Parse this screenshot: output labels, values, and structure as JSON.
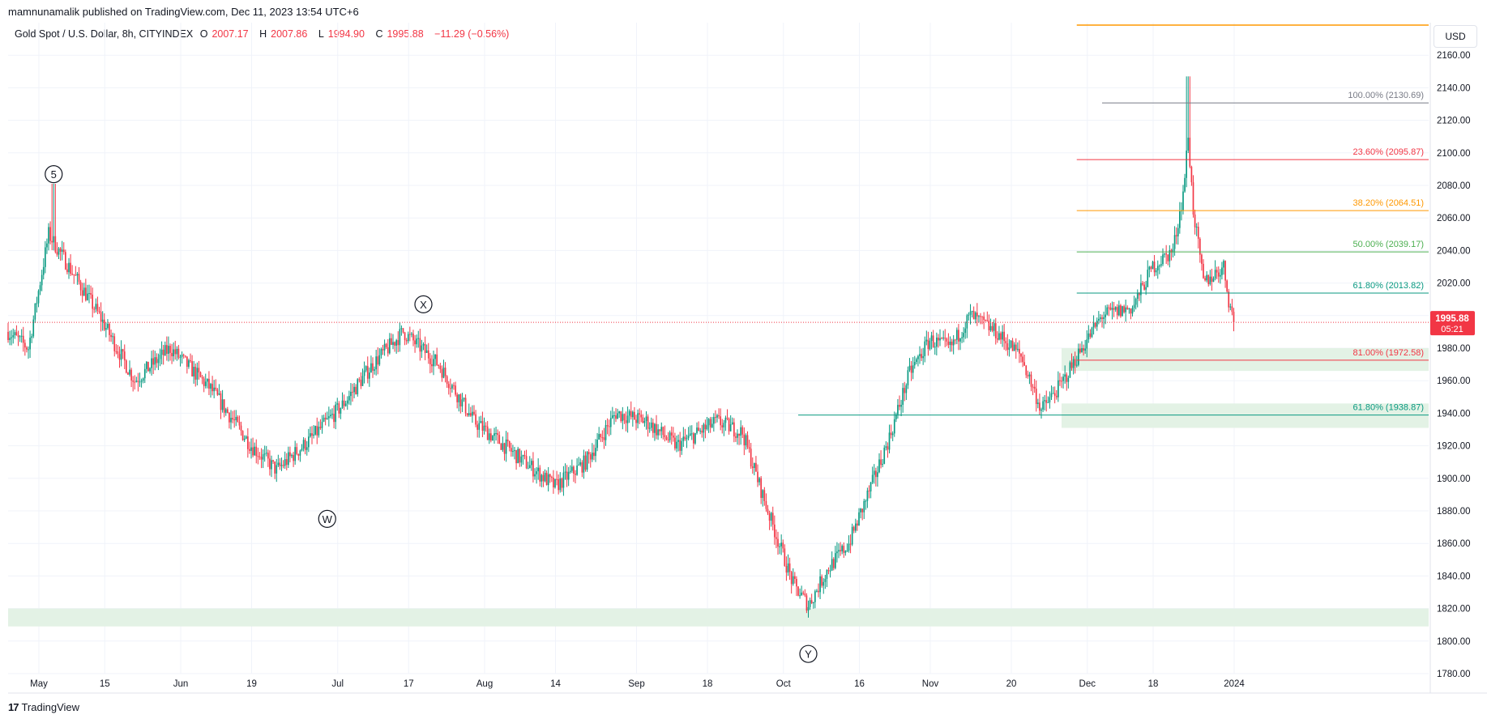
{
  "header": {
    "published": "mamnunamalik published on TradingView.com, Dec 11, 2023 13:54 UTC+6"
  },
  "legend": {
    "symbol": "Gold Spot / U.S. Dollar, 8h, CITYINDEX",
    "open_label": "O",
    "open": "2007.17",
    "high_label": "H",
    "high": "2007.86",
    "low_label": "L",
    "low": "1994.90",
    "close_label": "C",
    "close": "1995.88",
    "change": "−11.29 (−0.56%)"
  },
  "currency_button": "USD",
  "footer": {
    "brand": "TradingView",
    "logo_glyph": "17"
  },
  "colors": {
    "up": "#089981",
    "down": "#f23645",
    "grid": "#f0f3fa",
    "zone": "#e3f2e5",
    "fib_100": "#787b86",
    "fib_236": "#f23645",
    "fib_382": "#ff9800",
    "fib_500": "#4caf50",
    "fib_618": "#089981",
    "top_line": "#ff9800",
    "price_line": "#f23645"
  },
  "chart_data": {
    "type": "candlestick",
    "title": "Gold Spot / U.S. Dollar, 8h, CITYINDEX",
    "ylim": [
      1780,
      2180
    ],
    "y_ticks": [
      "1780.00",
      "1800.00",
      "1820.00",
      "1840.00",
      "1860.00",
      "1880.00",
      "1900.00",
      "1920.00",
      "1940.00",
      "1960.00",
      "1980.00",
      "2000.00",
      "2020.00",
      "2040.00",
      "2060.00",
      "2080.00",
      "2100.00",
      "2120.00",
      "2140.00",
      "2160.00"
    ],
    "x_ticks": [
      "May",
      "15",
      "Jun",
      "19",
      "Jul",
      "17",
      "Aug",
      "14",
      "Sep",
      "18",
      "Oct",
      "16",
      "Nov",
      "20",
      "Dec",
      "18",
      "2024"
    ],
    "anchors": [
      {
        "d": 0,
        "p": 1990
      },
      {
        "d": 4,
        "p": 1980
      },
      {
        "d": 8,
        "p": 2050
      },
      {
        "d": 12,
        "p": 2030
      },
      {
        "d": 18,
        "p": 2000
      },
      {
        "d": 25,
        "p": 1960
      },
      {
        "d": 32,
        "p": 1980
      },
      {
        "d": 40,
        "p": 1955
      },
      {
        "d": 48,
        "p": 1920
      },
      {
        "d": 53,
        "p": 1905
      },
      {
        "d": 60,
        "p": 1925
      },
      {
        "d": 66,
        "p": 1945
      },
      {
        "d": 72,
        "p": 1970
      },
      {
        "d": 78,
        "p": 1990
      },
      {
        "d": 85,
        "p": 1970
      },
      {
        "d": 92,
        "p": 1935
      },
      {
        "d": 100,
        "p": 1915
      },
      {
        "d": 108,
        "p": 1895
      },
      {
        "d": 114,
        "p": 1910
      },
      {
        "d": 120,
        "p": 1940
      },
      {
        "d": 126,
        "p": 1935
      },
      {
        "d": 132,
        "p": 1920
      },
      {
        "d": 140,
        "p": 1935
      },
      {
        "d": 145,
        "p": 1928
      },
      {
        "d": 150,
        "p": 1880
      },
      {
        "d": 155,
        "p": 1835
      },
      {
        "d": 158,
        "p": 1822
      },
      {
        "d": 162,
        "p": 1845
      },
      {
        "d": 166,
        "p": 1860
      },
      {
        "d": 171,
        "p": 1900
      },
      {
        "d": 174,
        "p": 1925
      },
      {
        "d": 178,
        "p": 1965
      },
      {
        "d": 182,
        "p": 1985
      },
      {
        "d": 186,
        "p": 1980
      },
      {
        "d": 190,
        "p": 2000
      },
      {
        "d": 195,
        "p": 1990
      },
      {
        "d": 200,
        "p": 1975
      },
      {
        "d": 204,
        "p": 1942
      },
      {
        "d": 208,
        "p": 1958
      },
      {
        "d": 212,
        "p": 1980
      },
      {
        "d": 216,
        "p": 2000
      },
      {
        "d": 222,
        "p": 2005
      },
      {
        "d": 226,
        "p": 2030
      },
      {
        "d": 230,
        "p": 2040
      },
      {
        "d": 232,
        "p": 2075
      },
      {
        "d": 233,
        "p": 2110
      },
      {
        "d": 234,
        "p": 2065
      },
      {
        "d": 236,
        "p": 2020
      },
      {
        "d": 238,
        "p": 2025
      },
      {
        "d": 240,
        "p": 2030
      },
      {
        "d": 241,
        "p": 2010
      },
      {
        "d": 242,
        "p": 1996
      }
    ],
    "current_price": "1995.88",
    "countdown": "05:21",
    "fib_levels": [
      {
        "label": "100.00% (2130.69)",
        "price": 2130.69,
        "colorKey": "fib_100",
        "x0_day": 216
      },
      {
        "label": "23.60% (2095.87)",
        "price": 2095.87,
        "colorKey": "fib_236",
        "x0_day": 211
      },
      {
        "label": "38.20% (2064.51)",
        "price": 2064.51,
        "colorKey": "fib_382",
        "x0_day": 211
      },
      {
        "label": "50.00% (2039.17)",
        "price": 2039.17,
        "colorKey": "fib_500",
        "x0_day": 211
      },
      {
        "label": "61.80% (2013.82)",
        "price": 2013.82,
        "colorKey": "fib_618",
        "x0_day": 211
      },
      {
        "label": "81.00% (1972.58)",
        "price": 1972.58,
        "colorKey": "fib_236",
        "x0_day": 211
      },
      {
        "label": "61.80% (1938.87)",
        "price": 1938.87,
        "colorKey": "fib_618",
        "x0_day": 156
      }
    ],
    "zones": [
      {
        "from_day": 0,
        "top": 1820,
        "bottom": 1809
      },
      {
        "from_day": 208,
        "top": 1980,
        "bottom": 1966
      },
      {
        "from_day": 208,
        "top": 1946,
        "bottom": 1931
      }
    ],
    "top_line_price": 2180,
    "wave_labels": [
      {
        "text": "5",
        "day": 9,
        "price": 2070,
        "pos": "above"
      },
      {
        "text": "W",
        "day": 63,
        "price": 1895,
        "pos": "below"
      },
      {
        "text": "X",
        "day": 82,
        "price": 1990,
        "pos": "above"
      },
      {
        "text": "Y",
        "day": 158,
        "price": 1812,
        "pos": "below"
      }
    ]
  }
}
